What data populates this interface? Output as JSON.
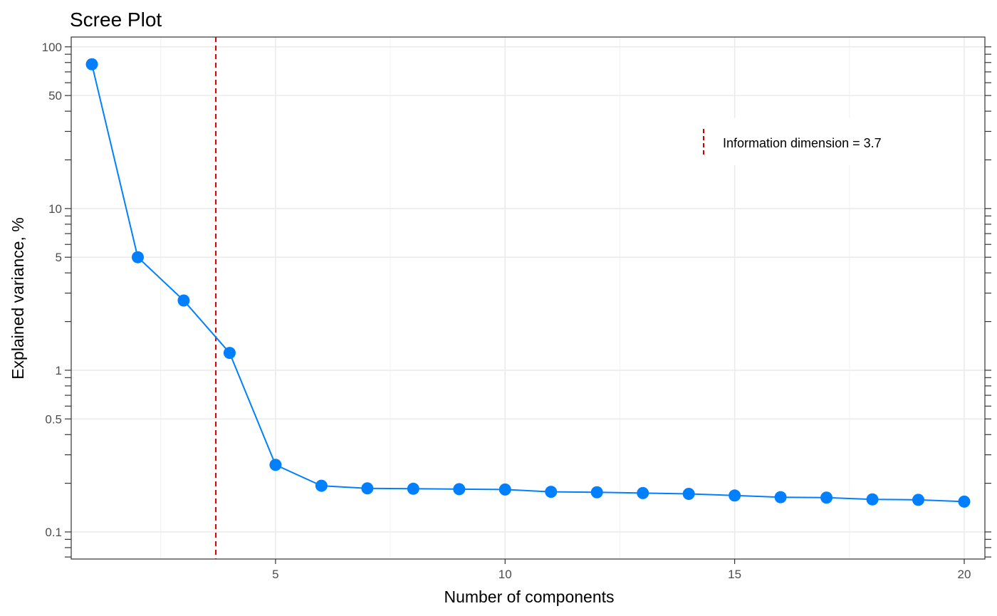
{
  "chart_data": {
    "type": "line",
    "title": "Scree Plot",
    "xlabel": "Number of components",
    "ylabel": "Explained variance, %",
    "y_scale": "log10",
    "xlim": [
      0.55,
      20.45
    ],
    "ylim": [
      0.068,
      115
    ],
    "x_ticks": [
      5,
      10,
      15,
      20
    ],
    "y_ticks": [
      0.1,
      0.5,
      1,
      5,
      10,
      50,
      100
    ],
    "y_tick_labels": [
      "0.1",
      "0.5",
      "1",
      "5",
      "10",
      "50",
      "100"
    ],
    "grid": true,
    "series": [
      {
        "x": [
          1,
          2,
          3,
          4,
          5,
          6,
          7,
          8,
          9,
          10,
          11,
          12,
          13,
          14,
          15,
          16,
          17,
          18,
          19,
          20
        ],
        "values": [
          78,
          5.0,
          2.7,
          1.28,
          0.26,
          0.193,
          0.186,
          0.185,
          0.184,
          0.183,
          0.177,
          0.176,
          0.174,
          0.172,
          0.168,
          0.164,
          0.163,
          0.159,
          0.158,
          0.154
        ],
        "color": "#0080ff"
      }
    ],
    "vline": {
      "x": 3.7,
      "color": "#cc0000",
      "style": "dashed"
    },
    "legend": {
      "label": "Information dimension = 3.7",
      "placement": "top-right"
    }
  }
}
